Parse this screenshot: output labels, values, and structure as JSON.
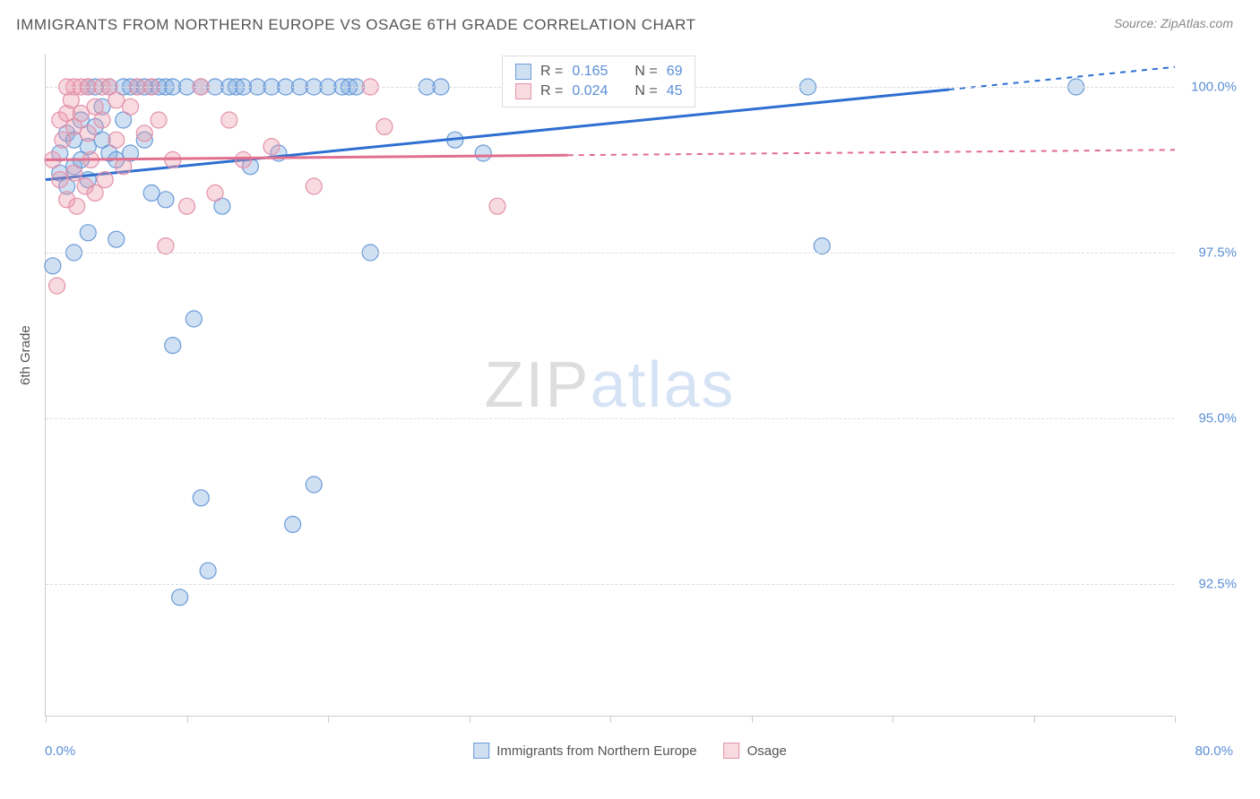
{
  "title": "IMMIGRANTS FROM NORTHERN EUROPE VS OSAGE 6TH GRADE CORRELATION CHART",
  "source": "Source: ZipAtlas.com",
  "ylabel": "6th Grade",
  "watermark": {
    "part1": "ZIP",
    "part2": "atlas"
  },
  "chart": {
    "type": "scatter",
    "xlim": [
      0,
      80
    ],
    "ylim": [
      90.5,
      100.5
    ],
    "xtick_positions": [
      0,
      10,
      20,
      30,
      40,
      50,
      60,
      70,
      80
    ],
    "xtick_labels_shown": {
      "min": "0.0%",
      "max": "80.0%"
    },
    "ytick_positions": [
      92.5,
      95.0,
      97.5,
      100.0
    ],
    "ytick_labels": [
      "92.5%",
      "95.0%",
      "97.5%",
      "100.0%"
    ],
    "grid_color": "#dddddd",
    "background_color": "#ffffff",
    "series": [
      {
        "name": "Immigrants from Northern Europe",
        "color_fill": "rgba(120,165,220,0.35)",
        "color_stroke": "#6a9bd8",
        "trend_color": "#2e6fd1",
        "trend_solid_to_x": 64,
        "trend": {
          "y_at_x0": 98.6,
          "y_at_xmax": 100.3
        },
        "marker_radius": 9,
        "R": "0.165",
        "N": "69",
        "points": [
          [
            0.5,
            97.3
          ],
          [
            1,
            99.0
          ],
          [
            1,
            98.7
          ],
          [
            1.5,
            99.3
          ],
          [
            1.5,
            98.5
          ],
          [
            2,
            99.2
          ],
          [
            2,
            98.8
          ],
          [
            2,
            97.5
          ],
          [
            2.5,
            99.5
          ],
          [
            2.5,
            98.9
          ],
          [
            3,
            100
          ],
          [
            3,
            99.1
          ],
          [
            3,
            98.6
          ],
          [
            3,
            97.8
          ],
          [
            3.5,
            100
          ],
          [
            3.5,
            99.4
          ],
          [
            4,
            99.7
          ],
          [
            4,
            99.2
          ],
          [
            4.5,
            100
          ],
          [
            4.5,
            99.0
          ],
          [
            5,
            98.9
          ],
          [
            5,
            97.7
          ],
          [
            5.5,
            100
          ],
          [
            5.5,
            99.5
          ],
          [
            6,
            100
          ],
          [
            6,
            99.0
          ],
          [
            6.5,
            100
          ],
          [
            7,
            100
          ],
          [
            7,
            99.2
          ],
          [
            7.5,
            100
          ],
          [
            7.5,
            98.4
          ],
          [
            8,
            100
          ],
          [
            8.5,
            100
          ],
          [
            8.5,
            98.3
          ],
          [
            9,
            100
          ],
          [
            9,
            96.1
          ],
          [
            9.5,
            92.3
          ],
          [
            10,
            100
          ],
          [
            10.5,
            96.5
          ],
          [
            11,
            100
          ],
          [
            11,
            93.8
          ],
          [
            11.5,
            92.7
          ],
          [
            12,
            100
          ],
          [
            12.5,
            98.2
          ],
          [
            13,
            100
          ],
          [
            13.5,
            100
          ],
          [
            14,
            100
          ],
          [
            14.5,
            98.8
          ],
          [
            15,
            100
          ],
          [
            16,
            100
          ],
          [
            16.5,
            99.0
          ],
          [
            17,
            100
          ],
          [
            17.5,
            93.4
          ],
          [
            18,
            100
          ],
          [
            19,
            100
          ],
          [
            19,
            94.0
          ],
          [
            20,
            100
          ],
          [
            21,
            100
          ],
          [
            21.5,
            100
          ],
          [
            22,
            100
          ],
          [
            23,
            97.5
          ],
          [
            27,
            100
          ],
          [
            28,
            100
          ],
          [
            29,
            99.2
          ],
          [
            31,
            99.0
          ],
          [
            37,
            100
          ],
          [
            54,
            100
          ],
          [
            55,
            97.6
          ],
          [
            73,
            100
          ]
        ]
      },
      {
        "name": "Osage",
        "color_fill": "rgba(235,150,170,0.35)",
        "color_stroke": "#e392aa",
        "trend_color": "#e16f8f",
        "trend_solid_to_x": 37,
        "trend": {
          "y_at_x0": 98.9,
          "y_at_xmax": 99.05
        },
        "marker_radius": 9,
        "R": "0.024",
        "N": "45",
        "points": [
          [
            0.5,
            98.9
          ],
          [
            0.8,
            97.0
          ],
          [
            1,
            99.5
          ],
          [
            1,
            98.6
          ],
          [
            1.2,
            99.2
          ],
          [
            1.5,
            100
          ],
          [
            1.5,
            99.6
          ],
          [
            1.5,
            98.3
          ],
          [
            1.8,
            99.8
          ],
          [
            2,
            100
          ],
          [
            2,
            99.4
          ],
          [
            2,
            98.7
          ],
          [
            2.2,
            98.2
          ],
          [
            2.5,
            100
          ],
          [
            2.5,
            99.6
          ],
          [
            2.8,
            98.5
          ],
          [
            3,
            100
          ],
          [
            3,
            99.3
          ],
          [
            3.2,
            98.9
          ],
          [
            3.5,
            99.7
          ],
          [
            3.5,
            98.4
          ],
          [
            4,
            100
          ],
          [
            4,
            99.5
          ],
          [
            4.2,
            98.6
          ],
          [
            4.5,
            100
          ],
          [
            5,
            99.8
          ],
          [
            5,
            99.2
          ],
          [
            5.5,
            98.8
          ],
          [
            6,
            99.7
          ],
          [
            6.5,
            100
          ],
          [
            7,
            99.3
          ],
          [
            7.5,
            100
          ],
          [
            8,
            99.5
          ],
          [
            8.5,
            97.6
          ],
          [
            9,
            98.9
          ],
          [
            10,
            98.2
          ],
          [
            11,
            100
          ],
          [
            12,
            98.4
          ],
          [
            13,
            99.5
          ],
          [
            14,
            98.9
          ],
          [
            16,
            99.1
          ],
          [
            19,
            98.5
          ],
          [
            23,
            100
          ],
          [
            24,
            99.4
          ],
          [
            32,
            98.2
          ]
        ]
      }
    ]
  },
  "legend_bottom": [
    {
      "label": "Immigrants from Northern Europe",
      "fill": "rgba(120,165,220,0.35)",
      "stroke": "#6a9bd8"
    },
    {
      "label": "Osage",
      "fill": "rgba(235,150,170,0.35)",
      "stroke": "#e392aa"
    }
  ],
  "stats_box": {
    "rows": [
      {
        "fill": "rgba(120,165,220,0.35)",
        "stroke": "#6a9bd8",
        "R_label": "R  =",
        "R": "0.165",
        "N_label": "N  =",
        "N": "69"
      },
      {
        "fill": "rgba(235,150,170,0.35)",
        "stroke": "#e392aa",
        "R_label": "R  =",
        "R": "0.024",
        "N_label": "N  =",
        "N": "45"
      }
    ]
  }
}
